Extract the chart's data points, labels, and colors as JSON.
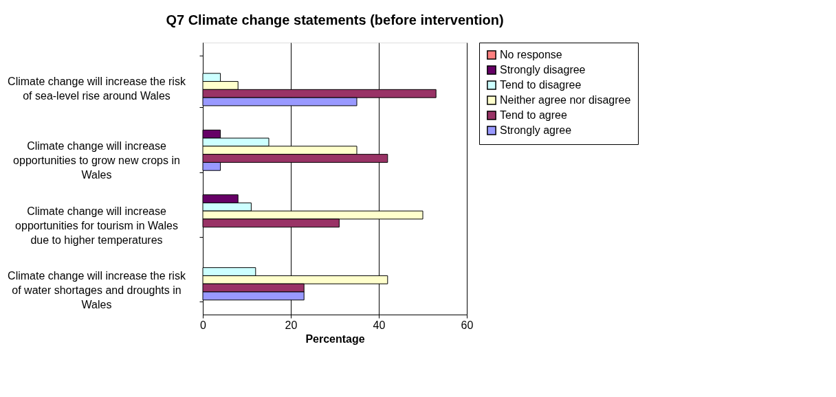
{
  "chart_data": {
    "type": "bar",
    "orientation": "horizontal",
    "title": "Q7 Climate change statements  (before intervention)",
    "xlabel": "Percentage",
    "categories": [
      "Climate change will increase the risk of sea-level rise around Wales",
      "Climate change will increase opportunities to grow new crops in Wales",
      "Climate change will increase opportunities for tourism in Wales due to higher temperatures",
      "Climate change will increase the risk of water shortages and droughts in Wales"
    ],
    "series": [
      {
        "name": "No response",
        "color": "#ff8080",
        "values": [
          0,
          0,
          0,
          0
        ]
      },
      {
        "name": "Strongly disagree",
        "color": "#660066",
        "values": [
          0,
          4,
          8,
          0
        ]
      },
      {
        "name": "Tend to disagree",
        "color": "#ccffff",
        "values": [
          4,
          15,
          11,
          12
        ]
      },
      {
        "name": "Neither agree nor disagree",
        "color": "#ffffcc",
        "values": [
          8,
          35,
          50,
          42
        ]
      },
      {
        "name": "Tend to agree",
        "color": "#993366",
        "values": [
          53,
          42,
          31,
          23
        ]
      },
      {
        "name": "Strongly agree",
        "color": "#9999ff",
        "values": [
          35,
          4,
          0,
          23
        ]
      }
    ],
    "xlim": [
      0,
      60
    ],
    "xticks": [
      0,
      20,
      40,
      60
    ],
    "grid": "x",
    "legend": "right"
  }
}
